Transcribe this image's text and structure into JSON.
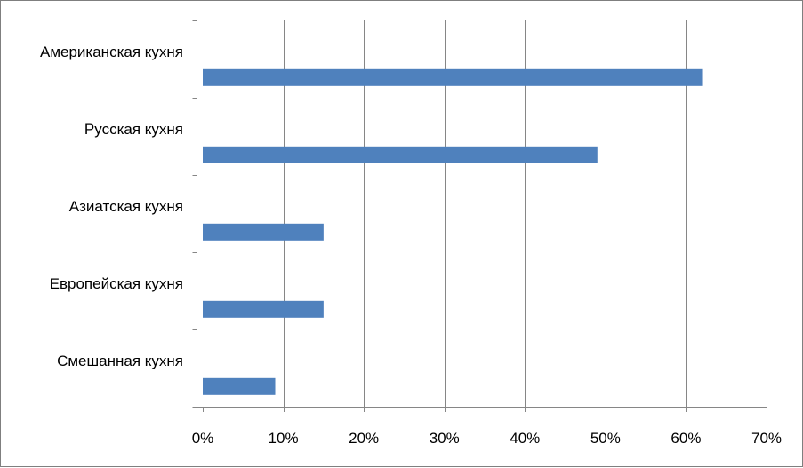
{
  "chart_data": {
    "type": "bar",
    "orientation": "horizontal",
    "categories": [
      "Американская кухня",
      "Русская кухня",
      "Азиатская кухня",
      "Европейская кухня",
      "Смешанная кухня"
    ],
    "values": [
      62,
      49,
      15,
      15,
      9
    ],
    "value_unit": "%",
    "xlim": [
      0,
      70
    ],
    "x_ticks": [
      0,
      10,
      20,
      30,
      40,
      50,
      60,
      70
    ],
    "x_tick_labels": [
      "0%",
      "10%",
      "20%",
      "30%",
      "40%",
      "50%",
      "60%",
      "70%"
    ],
    "grid": "vertical",
    "legend": "none",
    "bar_color": "#4f81bd",
    "grid_color": "#868686"
  }
}
